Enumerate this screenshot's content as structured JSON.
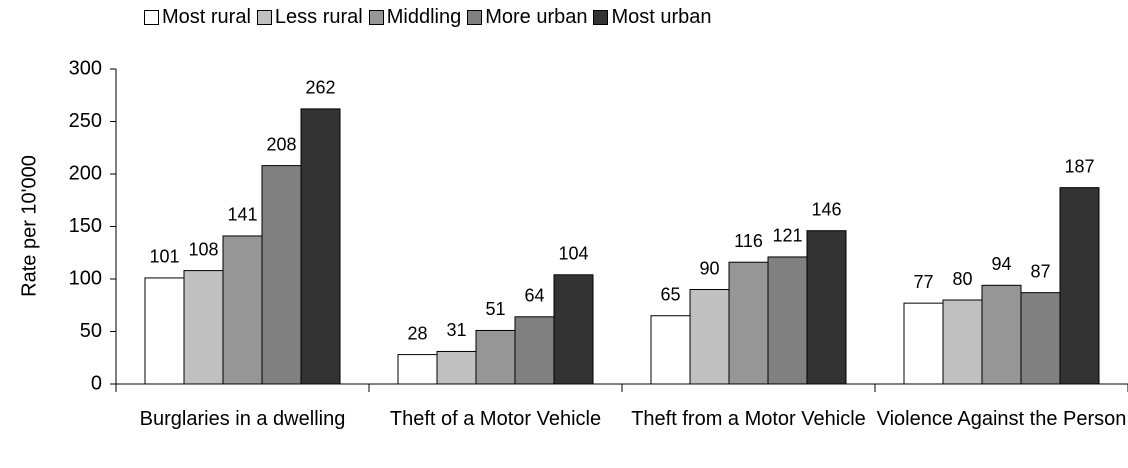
{
  "chart_data": {
    "type": "bar",
    "y_label": "Rate per 10'000",
    "categories": [
      "Burglaries in a dwelling",
      "Theft of a Motor Vehicle",
      "Theft from a Motor Vehicle",
      "Violence Against the Person"
    ],
    "series": [
      {
        "name": "Most rural",
        "color": "#ffffff",
        "values": [
          101,
          28,
          65,
          77
        ]
      },
      {
        "name": "Less rural",
        "color": "#c0c0c0",
        "values": [
          108,
          31,
          90,
          80
        ]
      },
      {
        "name": "Middling",
        "color": "#969696",
        "values": [
          141,
          51,
          116,
          94
        ]
      },
      {
        "name": "More urban",
        "color": "#808080",
        "values": [
          208,
          64,
          121,
          87
        ]
      },
      {
        "name": "Most urban",
        "color": "#333333",
        "values": [
          262,
          104,
          146,
          187
        ]
      }
    ],
    "ylim": [
      0,
      300
    ],
    "yticks": [
      0,
      50,
      100,
      150,
      200,
      250,
      300
    ],
    "grid": false
  }
}
